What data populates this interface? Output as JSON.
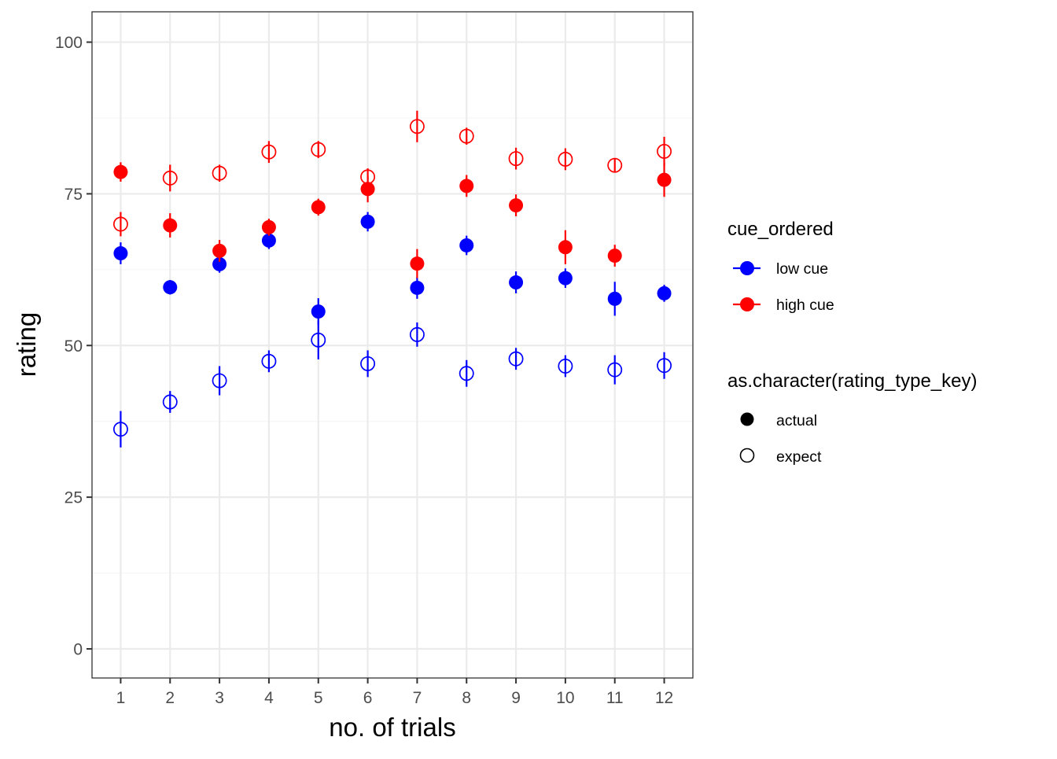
{
  "chart_data": {
    "type": "scatter",
    "title": "",
    "xlabel": "no. of trials",
    "ylabel": "rating",
    "x_ticks": [
      "1",
      "2",
      "3",
      "4",
      "5",
      "6",
      "7",
      "8",
      "9",
      "10",
      "11",
      "12"
    ],
    "y_ticks": [
      "0",
      "25",
      "50",
      "75",
      "100"
    ],
    "xlim": [
      0.42,
      12.58
    ],
    "ylim": [
      -4.8,
      105
    ],
    "grid": true,
    "legend_position": "right",
    "colors": {
      "low_cue": "#0000ff",
      "high_cue": "#ff0000",
      "grid_major": "#ebebeb",
      "grid_minor": "#f5f5f5",
      "panel_border": "#333333"
    },
    "legends": [
      {
        "title": "cue_ordered",
        "entries": [
          {
            "label": "low cue",
            "color": "#0000ff"
          },
          {
            "label": "high cue",
            "color": "#ff0000"
          }
        ]
      },
      {
        "title": "as.character(rating_type_key)",
        "entries": [
          {
            "label": "actual",
            "shape": "filled"
          },
          {
            "label": "expect",
            "shape": "open"
          }
        ]
      }
    ],
    "series": [
      {
        "name": "low cue",
        "cue": "low",
        "type": "actual",
        "color": "#0000ff",
        "x": [
          1,
          2,
          3,
          4,
          5,
          6,
          7,
          8,
          9,
          10,
          11,
          12
        ],
        "y": [
          65.2,
          59.6,
          63.4,
          67.3,
          55.6,
          70.4,
          59.5,
          66.5,
          60.4,
          61.1,
          57.7,
          58.6
        ],
        "err": [
          1.8,
          1.2,
          1.4,
          1.4,
          2.2,
          1.6,
          1.8,
          1.6,
          1.8,
          1.6,
          2.8,
          1.4
        ]
      },
      {
        "name": "low cue",
        "cue": "low",
        "type": "expect",
        "color": "#0000ff",
        "x": [
          1,
          2,
          3,
          4,
          5,
          6,
          7,
          8,
          9,
          10,
          11,
          12
        ],
        "y": [
          36.2,
          40.7,
          44.2,
          47.4,
          50.9,
          47.0,
          51.8,
          45.4,
          47.8,
          46.6,
          46.0,
          46.7
        ],
        "err": [
          3.0,
          1.8,
          2.4,
          1.8,
          3.2,
          2.2,
          2.0,
          2.2,
          1.8,
          1.8,
          2.4,
          2.2
        ]
      },
      {
        "name": "high cue",
        "cue": "high",
        "type": "actual",
        "color": "#ff0000",
        "x": [
          1,
          2,
          3,
          4,
          5,
          6,
          7,
          8,
          9,
          10,
          11,
          12
        ],
        "y": [
          78.6,
          69.8,
          65.6,
          69.5,
          72.8,
          75.8,
          63.5,
          76.3,
          73.1,
          66.2,
          64.8,
          77.3
        ],
        "err": [
          1.6,
          2.0,
          1.8,
          1.4,
          1.4,
          2.2,
          2.4,
          1.8,
          1.8,
          2.8,
          1.8,
          2.8
        ]
      },
      {
        "name": "high cue",
        "cue": "high",
        "type": "expect",
        "color": "#ff0000",
        "x": [
          1,
          2,
          3,
          4,
          5,
          6,
          7,
          8,
          9,
          10,
          11,
          12
        ],
        "y": [
          70.0,
          77.6,
          78.4,
          81.9,
          82.3,
          77.8,
          86.1,
          84.5,
          80.8,
          80.7,
          79.7,
          82.0
        ],
        "err": [
          2.0,
          2.2,
          1.4,
          1.8,
          1.4,
          1.4,
          2.6,
          1.4,
          1.8,
          1.8,
          1.2,
          2.4
        ]
      }
    ]
  }
}
